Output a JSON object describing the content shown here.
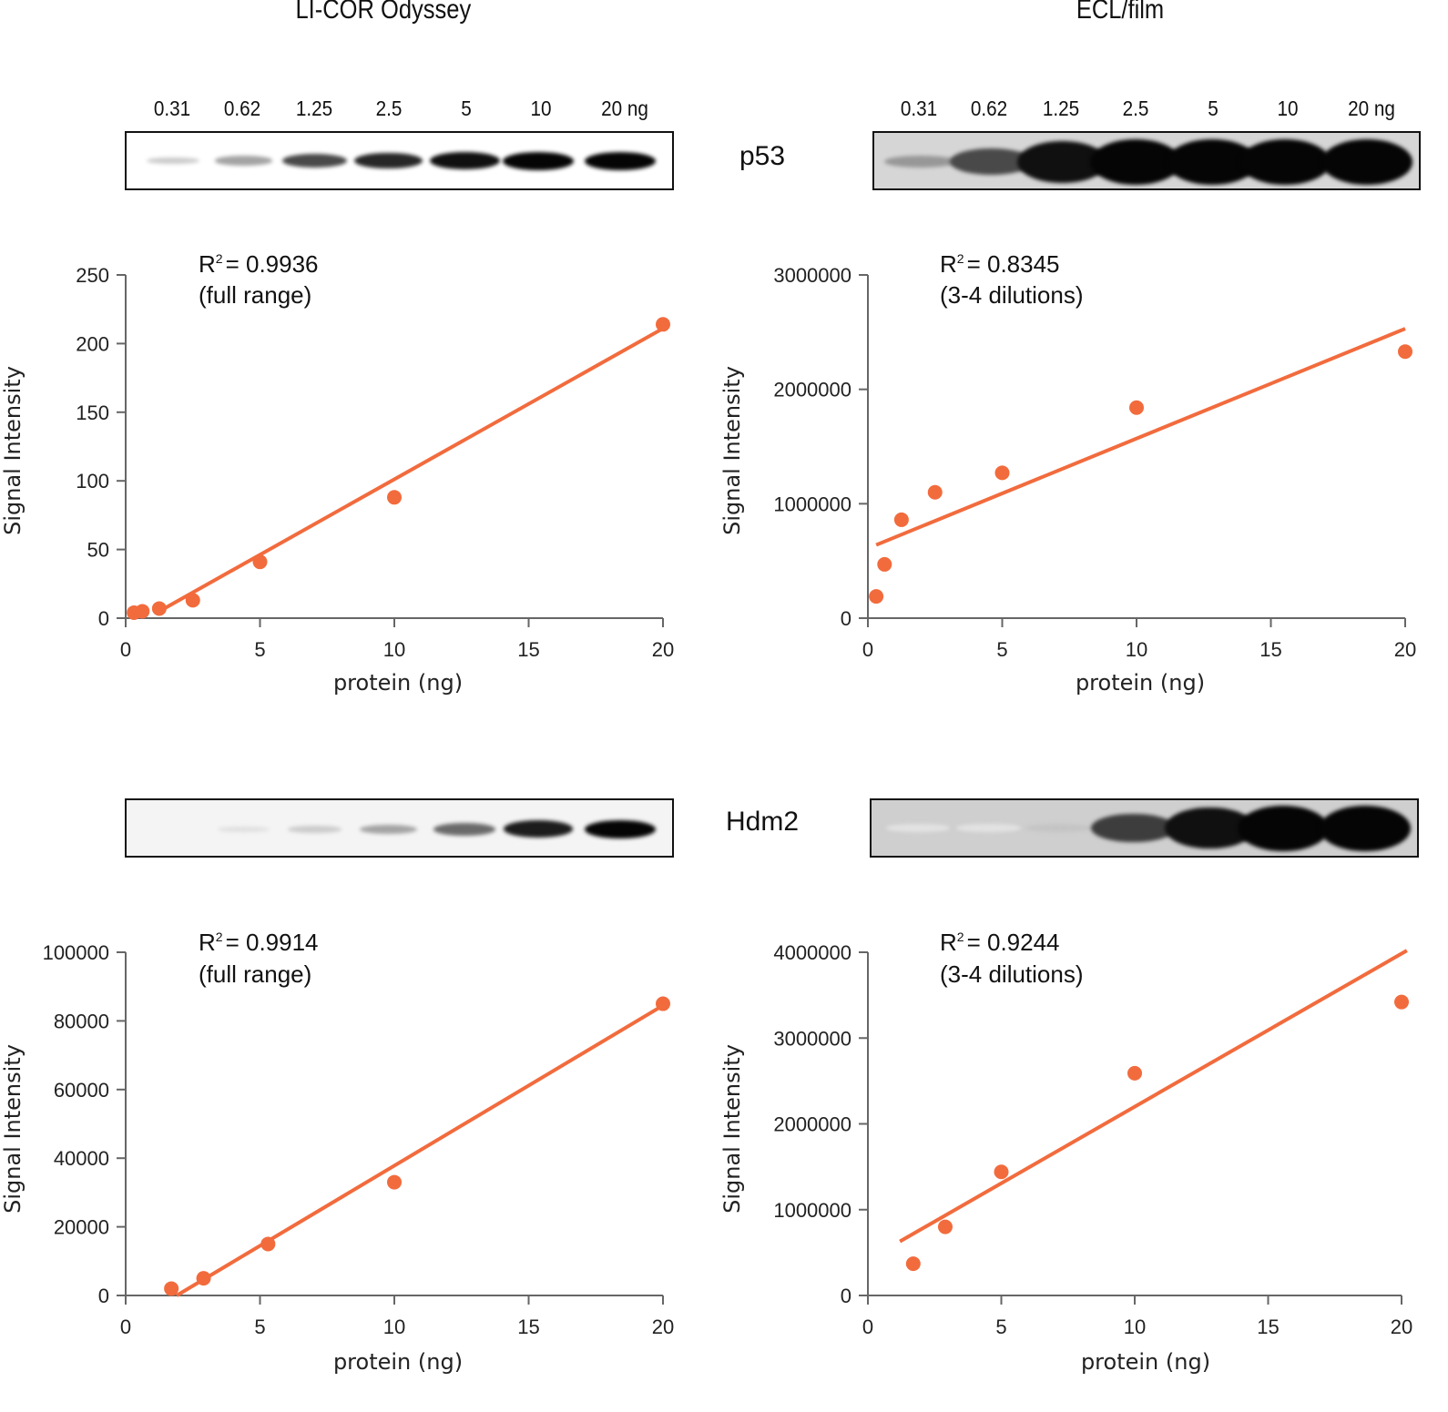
{
  "column_titles": {
    "left": "LI-COR Odyssey",
    "right": "ECL/film"
  },
  "lane_labels": [
    "0.31",
    "0.62",
    "1.25",
    "2.5",
    "5",
    "10",
    "20 ng"
  ],
  "proteins": {
    "top": "p53",
    "bottom": "Hdm2"
  },
  "blots": {
    "licor_p53": {
      "intensities": [
        0.12,
        0.3,
        0.7,
        0.85,
        0.95,
        1.0,
        1.0
      ],
      "background": "#ffffff"
    },
    "ecl_p53": {
      "intensities": [
        0.35,
        0.7,
        0.95,
        1.0,
        1.0,
        1.0,
        1.0
      ],
      "background": "#d6d6d6"
    },
    "licor_hdm2": {
      "intensities": [
        0.0,
        0.03,
        0.12,
        0.3,
        0.55,
        0.9,
        1.0
      ],
      "background": "#f4f4f4"
    },
    "ecl_hdm2": {
      "intensities": [
        0.02,
        0.02,
        0.15,
        0.75,
        0.95,
        1.0,
        1.0
      ],
      "background": "#cfcfcf"
    }
  },
  "colors": {
    "series": "#f26b3d",
    "axis": "#666666"
  },
  "chart_data": [
    {
      "id": "licor_p53",
      "type": "scatter",
      "title": "",
      "annotation_line1": "= 0.9936",
      "annotation_r": "R",
      "annotation_sup": "2",
      "annotation_line2": "(full range)",
      "xlabel": "protein (ng)",
      "ylabel": "Signal Intensity",
      "xlim": [
        0,
        20
      ],
      "ylim": [
        0,
        250
      ],
      "xticks": [
        0,
        5,
        10,
        15,
        20
      ],
      "yticks": [
        0,
        50,
        100,
        150,
        200,
        250
      ],
      "grid": false,
      "points": {
        "x": [
          0.31,
          0.62,
          1.25,
          2.5,
          5,
          10,
          20
        ],
        "y": [
          4,
          5,
          7,
          13,
          41,
          88,
          214
        ]
      },
      "fit": {
        "x": [
          1.25,
          20
        ],
        "y": [
          5,
          211
        ]
      }
    },
    {
      "id": "ecl_p53",
      "type": "scatter",
      "title": "",
      "annotation_line1": "= 0.8345",
      "annotation_r": "R",
      "annotation_sup": "2",
      "annotation_line2": "(3-4 dilutions)",
      "xlabel": "protein (ng)",
      "ylabel": "Signal Intensity",
      "xlim": [
        0,
        20
      ],
      "ylim": [
        0,
        3000000
      ],
      "xticks": [
        0,
        5,
        10,
        15,
        20
      ],
      "yticks": [
        0,
        1000000,
        2000000,
        3000000
      ],
      "grid": false,
      "points": {
        "x": [
          0.31,
          0.62,
          1.25,
          2.5,
          5,
          10,
          20
        ],
        "y": [
          190000,
          470000,
          860000,
          1100000,
          1270000,
          1840000,
          2330000
        ]
      },
      "fit": {
        "x": [
          0.31,
          20
        ],
        "y": [
          640000,
          2530000
        ]
      }
    },
    {
      "id": "licor_hdm2",
      "type": "scatter",
      "title": "",
      "annotation_line1": "= 0.9914",
      "annotation_r": "R",
      "annotation_sup": "2",
      "annotation_line2": "(full range)",
      "xlabel": "protein (ng)",
      "ylabel": "Signal Intensity",
      "xlim": [
        0,
        20
      ],
      "ylim": [
        0,
        100000
      ],
      "xticks": [
        0,
        5,
        10,
        15,
        20
      ],
      "yticks": [
        0,
        20000,
        40000,
        60000,
        80000,
        100000
      ],
      "grid": false,
      "points": {
        "x": [
          1.7,
          2.9,
          5.3,
          10,
          20
        ],
        "y": [
          2000,
          5000,
          15000,
          33000,
          85000
        ]
      },
      "fit": {
        "x": [
          1.9,
          20
        ],
        "y": [
          0,
          84500
        ]
      }
    },
    {
      "id": "ecl_hdm2",
      "type": "scatter",
      "title": "",
      "annotation_line1": "= 0.9244",
      "annotation_r": "R",
      "annotation_sup": "2",
      "annotation_line2": "(3-4 dilutions)",
      "xlabel": "protein (ng)",
      "ylabel": "Signal Intensity",
      "xlim": [
        0,
        20
      ],
      "ylim": [
        0,
        4000000
      ],
      "xticks": [
        0,
        5,
        10,
        15,
        20
      ],
      "yticks": [
        0,
        1000000,
        2000000,
        3000000,
        4000000
      ],
      "grid": false,
      "points": {
        "x": [
          1.7,
          2.9,
          5,
          10,
          20
        ],
        "y": [
          370000,
          800000,
          1440000,
          2590000,
          3420000
        ]
      },
      "fit": {
        "x": [
          1.2,
          20.2
        ],
        "y": [
          630000,
          4020000
        ]
      }
    }
  ]
}
